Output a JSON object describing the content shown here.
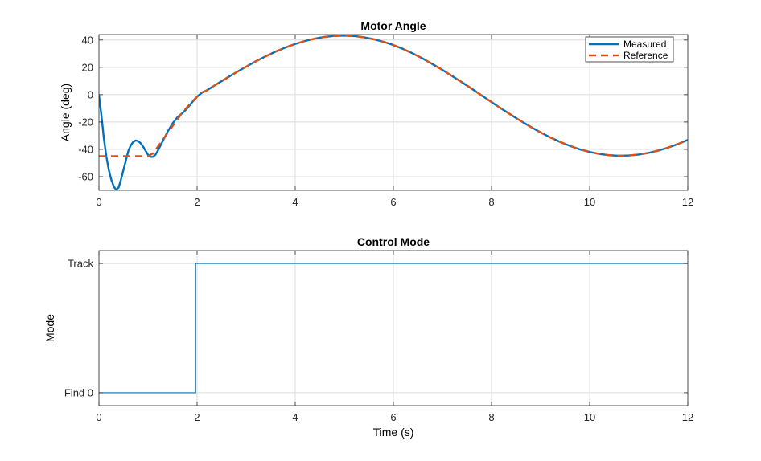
{
  "figure": {
    "background": "#ffffff",
    "grid_color": "#dcdcdc",
    "axis_color": "#262626"
  },
  "chart_data": [
    {
      "type": "line",
      "title": "Motor Angle",
      "xlabel": "",
      "ylabel": "Angle (deg)",
      "xlim": [
        0,
        12
      ],
      "ylim": [
        -70,
        44
      ],
      "xticks": [
        0,
        2,
        4,
        6,
        8,
        10,
        12
      ],
      "yticks": [
        -60,
        -40,
        -20,
        0,
        20,
        40
      ],
      "grid": true,
      "legend": {
        "placement": "top-right"
      },
      "series": [
        {
          "name": "Measured",
          "color": "#0072bd",
          "style": "solid",
          "points": [
            [
              0,
              0
            ],
            [
              0.05,
              -15
            ],
            [
              0.1,
              -32
            ],
            [
              0.15,
              -45
            ],
            [
              0.2,
              -55
            ],
            [
              0.25,
              -62
            ],
            [
              0.3,
              -67
            ],
            [
              0.35,
              -69.5
            ],
            [
              0.4,
              -68
            ],
            [
              0.45,
              -62
            ],
            [
              0.5,
              -55
            ],
            [
              0.55,
              -48
            ],
            [
              0.6,
              -41
            ],
            [
              0.65,
              -37
            ],
            [
              0.7,
              -34.5
            ],
            [
              0.75,
              -33.5
            ],
            [
              0.8,
              -34
            ],
            [
              0.85,
              -35.5
            ],
            [
              0.9,
              -38
            ],
            [
              0.95,
              -41
            ],
            [
              1.0,
              -44
            ],
            [
              1.05,
              -45.5
            ],
            [
              1.1,
              -45.5
            ],
            [
              1.15,
              -44
            ],
            [
              1.2,
              -41
            ],
            [
              1.3,
              -34
            ],
            [
              1.4,
              -27
            ],
            [
              1.5,
              -21
            ],
            [
              1.6,
              -16.5
            ],
            [
              1.7,
              -13.5
            ],
            [
              1.8,
              -10
            ],
            [
              1.9,
              -5.5
            ],
            [
              2.0,
              -1.5
            ],
            [
              2.1,
              1.5
            ],
            [
              2.2,
              3.2
            ],
            [
              2.4,
              7.7
            ],
            [
              2.6,
              12.1
            ],
            [
              2.8,
              16.4
            ],
            [
              3.0,
              20.5
            ],
            [
              3.2,
              24.5
            ],
            [
              3.4,
              28.1
            ],
            [
              3.6,
              31.5
            ],
            [
              3.8,
              34.5
            ],
            [
              4.0,
              37.1
            ],
            [
              4.2,
              39.3
            ],
            [
              4.4,
              41.0
            ],
            [
              4.6,
              42.3
            ],
            [
              4.8,
              43.0
            ],
            [
              5.0,
              43.2
            ],
            [
              5.2,
              42.9
            ],
            [
              5.4,
              42.0
            ],
            [
              5.6,
              40.6
            ],
            [
              5.8,
              38.7
            ],
            [
              6.0,
              36.3
            ],
            [
              6.2,
              33.4
            ],
            [
              6.4,
              30.1
            ],
            [
              6.6,
              26.4
            ],
            [
              6.8,
              22.3
            ],
            [
              7.0,
              18.1
            ],
            [
              7.2,
              13.6
            ],
            [
              7.4,
              9.0
            ],
            [
              7.6,
              4.3
            ],
            [
              7.8,
              -0.6
            ],
            [
              8.0,
              -5.4
            ],
            [
              8.2,
              -10.2
            ],
            [
              8.4,
              -14.8
            ],
            [
              8.6,
              -19.3
            ],
            [
              8.8,
              -23.6
            ],
            [
              9.0,
              -27.6
            ],
            [
              9.2,
              -31.3
            ],
            [
              9.4,
              -34.6
            ],
            [
              9.6,
              -37.5
            ],
            [
              9.8,
              -40.0
            ],
            [
              10.0,
              -41.9
            ],
            [
              10.2,
              -43.4
            ],
            [
              10.4,
              -44.3
            ],
            [
              10.6,
              -44.7
            ],
            [
              10.8,
              -44.5
            ],
            [
              11.0,
              -43.8
            ],
            [
              11.2,
              -42.6
            ],
            [
              11.4,
              -40.9
            ],
            [
              11.6,
              -38.7
            ],
            [
              11.8,
              -36.1
            ],
            [
              12.0,
              -33.1
            ]
          ]
        },
        {
          "name": "Reference",
          "color": "#d95319",
          "style": "dashed",
          "points": [
            [
              0,
              -45
            ],
            [
              0.5,
              -45
            ],
            [
              1.0,
              -45
            ],
            [
              1.1,
              -43
            ],
            [
              1.2,
              -38
            ],
            [
              1.3,
              -33
            ],
            [
              1.4,
              -28
            ],
            [
              1.5,
              -23
            ],
            [
              1.6,
              -18
            ],
            [
              1.7,
              -13
            ],
            [
              1.8,
              -9
            ],
            [
              1.9,
              -5
            ],
            [
              2.0,
              -1.5
            ],
            [
              2.1,
              1.5
            ],
            [
              2.2,
              3.2
            ],
            [
              2.4,
              7.7
            ],
            [
              2.6,
              12.1
            ],
            [
              2.8,
              16.4
            ],
            [
              3.0,
              20.5
            ],
            [
              3.2,
              24.5
            ],
            [
              3.4,
              28.1
            ],
            [
              3.6,
              31.5
            ],
            [
              3.8,
              34.5
            ],
            [
              4.0,
              37.1
            ],
            [
              4.2,
              39.3
            ],
            [
              4.4,
              41.0
            ],
            [
              4.6,
              42.3
            ],
            [
              4.8,
              43.0
            ],
            [
              5.0,
              43.2
            ],
            [
              5.2,
              42.9
            ],
            [
              5.4,
              42.0
            ],
            [
              5.6,
              40.6
            ],
            [
              5.8,
              38.7
            ],
            [
              6.0,
              36.3
            ],
            [
              6.2,
              33.4
            ],
            [
              6.4,
              30.1
            ],
            [
              6.6,
              26.4
            ],
            [
              6.8,
              22.3
            ],
            [
              7.0,
              18.1
            ],
            [
              7.2,
              13.6
            ],
            [
              7.4,
              9.0
            ],
            [
              7.6,
              4.3
            ],
            [
              7.8,
              -0.6
            ],
            [
              8.0,
              -5.4
            ],
            [
              8.2,
              -10.2
            ],
            [
              8.4,
              -14.8
            ],
            [
              8.6,
              -19.3
            ],
            [
              8.8,
              -23.6
            ],
            [
              9.0,
              -27.6
            ],
            [
              9.2,
              -31.3
            ],
            [
              9.4,
              -34.6
            ],
            [
              9.6,
              -37.5
            ],
            [
              9.8,
              -40.0
            ],
            [
              10.0,
              -41.9
            ],
            [
              10.2,
              -43.4
            ],
            [
              10.4,
              -44.3
            ],
            [
              10.6,
              -44.7
            ],
            [
              10.8,
              -44.5
            ],
            [
              11.0,
              -43.8
            ],
            [
              11.2,
              -42.6
            ],
            [
              11.4,
              -40.9
            ],
            [
              11.6,
              -38.7
            ],
            [
              11.8,
              -36.1
            ],
            [
              12.0,
              -33.1
            ]
          ]
        }
      ]
    },
    {
      "type": "line",
      "title": "Control Mode",
      "xlabel": "Time (s)",
      "ylabel": "Mode",
      "xlim": [
        0,
        12
      ],
      "ylim": [
        -0.1,
        1.1
      ],
      "xticks": [
        0,
        2,
        4,
        6,
        8,
        10,
        12
      ],
      "yticks": [
        {
          "value": 0,
          "label": "Find 0"
        },
        {
          "value": 1,
          "label": "Track"
        }
      ],
      "grid": true,
      "series": [
        {
          "color": "#0072bd",
          "style": "solid",
          "points": [
            [
              0,
              0
            ],
            [
              1.97,
              0
            ],
            [
              1.97,
              1
            ],
            [
              12,
              1
            ]
          ]
        }
      ]
    }
  ]
}
